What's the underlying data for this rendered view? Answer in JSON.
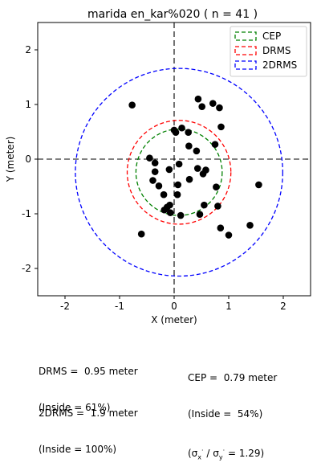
{
  "chart_data": {
    "type": "scatter",
    "title": "marida en_kar%020 ( n = 41 )",
    "xlabel": "X (meter)",
    "ylabel": "Y (meter)",
    "xlim": [
      -2.5,
      2.5
    ],
    "ylim": [
      -2.5,
      2.5
    ],
    "xticks": [
      -2,
      -1,
      0,
      1,
      2
    ],
    "yticks": [
      -2,
      -1,
      0,
      1,
      2
    ],
    "grid": false,
    "legend_position": "top-right",
    "colors": {
      "points": "#000000",
      "cep": "#008000",
      "drms": "#ff0000",
      "drms2": "#0000ff"
    },
    "circles": [
      {
        "name": "CEP",
        "radius": 0.79,
        "center": [
          0.09,
          -0.24
        ],
        "color": "#008000"
      },
      {
        "name": "DRMS",
        "radius": 0.95,
        "center": [
          0.09,
          -0.24
        ],
        "color": "#ff0000"
      },
      {
        "name": "2DRMS",
        "radius": 1.9,
        "center": [
          0.09,
          -0.24
        ],
        "color": "#0000ff"
      }
    ],
    "points": [
      {
        "x": -0.77,
        "y": 0.99
      },
      {
        "x": 0.44,
        "y": 1.1
      },
      {
        "x": 0.51,
        "y": 0.96
      },
      {
        "x": 0.71,
        "y": 1.02
      },
      {
        "x": 0.83,
        "y": 0.94
      },
      {
        "x": 0.0,
        "y": 0.53
      },
      {
        "x": 0.03,
        "y": 0.49
      },
      {
        "x": 0.14,
        "y": 0.57
      },
      {
        "x": 0.26,
        "y": 0.49
      },
      {
        "x": 0.86,
        "y": 0.59
      },
      {
        "x": 0.27,
        "y": 0.24
      },
      {
        "x": 0.75,
        "y": 0.27
      },
      {
        "x": 0.41,
        "y": 0.15
      },
      {
        "x": -0.45,
        "y": 0.02
      },
      {
        "x": -0.35,
        "y": -0.07
      },
      {
        "x": 0.09,
        "y": -0.09
      },
      {
        "x": 0.43,
        "y": -0.17
      },
      {
        "x": 0.58,
        "y": -0.2
      },
      {
        "x": -0.35,
        "y": -0.23
      },
      {
        "x": -0.09,
        "y": -0.19
      },
      {
        "x": 0.53,
        "y": -0.27
      },
      {
        "x": -0.39,
        "y": -0.39
      },
      {
        "x": 0.28,
        "y": -0.37
      },
      {
        "x": 0.07,
        "y": -0.47
      },
      {
        "x": -0.28,
        "y": -0.49
      },
      {
        "x": -0.19,
        "y": -0.65
      },
      {
        "x": 0.06,
        "y": -0.65
      },
      {
        "x": 0.77,
        "y": -0.51
      },
      {
        "x": 1.55,
        "y": -0.47
      },
      {
        "x": -0.08,
        "y": -0.84
      },
      {
        "x": -0.13,
        "y": -0.88
      },
      {
        "x": 0.55,
        "y": -0.84
      },
      {
        "x": -0.18,
        "y": -0.93
      },
      {
        "x": -0.07,
        "y": -0.98
      },
      {
        "x": 0.8,
        "y": -0.86
      },
      {
        "x": 0.12,
        "y": -1.03
      },
      {
        "x": 0.47,
        "y": -1.01
      },
      {
        "x": -0.6,
        "y": -1.37
      },
      {
        "x": 0.85,
        "y": -1.26
      },
      {
        "x": 1.0,
        "y": -1.39
      },
      {
        "x": 1.39,
        "y": -1.21
      }
    ]
  },
  "stats": {
    "drms_line": "DRMS =  0.95 meter",
    "drms_inside": "(Inside = 61%)",
    "drms2_line": "2DRMS =  1.9 meter",
    "drms2_inside": "(Inside = 100%)",
    "cep_line": "CEP =  0.79 meter",
    "cep_inside": "(Inside =  54%)",
    "sigma_ratio_value": "1.29"
  }
}
